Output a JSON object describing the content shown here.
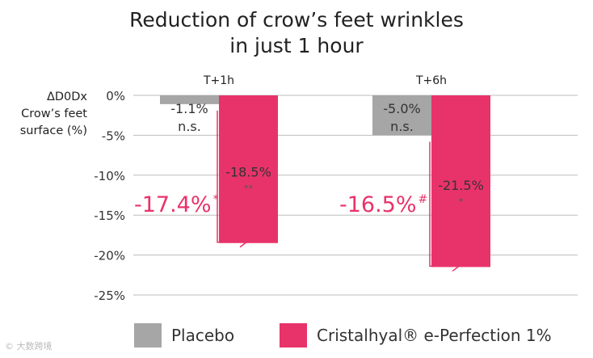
{
  "title_line1": "Reduction of crow’s feet wrinkles",
  "title_line2": "in just 1 hour",
  "watermark": "© 大数跨境",
  "chart_data": {
    "type": "bar",
    "title": "Reduction of crow’s feet wrinkles in just 1 hour",
    "ylabel_lines": [
      "ΔD0Dx",
      "Crow’s feet",
      "surface (%)"
    ],
    "ylim": [
      -25,
      0
    ],
    "yticks": [
      0,
      -5,
      -10,
      -15,
      -20,
      -25
    ],
    "ytick_labels": [
      "0%",
      "-5%",
      "-10%",
      "-15%",
      "-20%",
      "-25%"
    ],
    "grid": true,
    "legend_position": "bottom",
    "categories": [
      "T+1h",
      "T+6h"
    ],
    "series": [
      {
        "name": "Placebo",
        "color": "#a6a6a6",
        "values": [
          -1.1,
          -5.0
        ],
        "labels": [
          "-1.1%",
          "-5.0%"
        ],
        "significance": [
          "n.s.",
          "n.s."
        ]
      },
      {
        "name": "Cristalhyal® e-Perfection 1%",
        "color": "#e8336a",
        "values": [
          -18.5,
          -21.5
        ],
        "labels": [
          "-18.5%",
          "-21.5%"
        ],
        "significance": [
          "**",
          "*"
        ]
      }
    ],
    "annotations": [
      {
        "category": "T+1h",
        "text": "-17.4%",
        "mark": "*"
      },
      {
        "category": "T+6h",
        "text": "-16.5%",
        "mark": "#"
      }
    ]
  }
}
